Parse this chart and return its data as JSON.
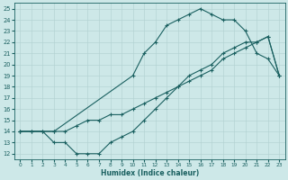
{
  "xlabel": "Humidex (Indice chaleur)",
  "bg_color": "#cde8e8",
  "line_color": "#1a6060",
  "grid_color": "#b0d0d0",
  "xlim": [
    -0.5,
    23.5
  ],
  "ylim": [
    11.5,
    25.5
  ],
  "xticks": [
    0,
    1,
    2,
    3,
    4,
    5,
    6,
    7,
    8,
    9,
    10,
    11,
    12,
    13,
    14,
    15,
    16,
    17,
    18,
    19,
    20,
    21,
    22,
    23
  ],
  "yticks": [
    12,
    13,
    14,
    15,
    16,
    17,
    18,
    19,
    20,
    21,
    22,
    23,
    24,
    25
  ],
  "line1_x": [
    0,
    1,
    2,
    3,
    4,
    5,
    6,
    7,
    8,
    9,
    10,
    11,
    12,
    13,
    14,
    15,
    16,
    17,
    18,
    19,
    20,
    21,
    22,
    23
  ],
  "line1_y": [
    14,
    14,
    14,
    13,
    13,
    12,
    12,
    12,
    13,
    13.5,
    14,
    15,
    16,
    17,
    18,
    19,
    19.5,
    20,
    21,
    21.5,
    22,
    22,
    22.5,
    19
  ],
  "line2_x": [
    0,
    1,
    2,
    3,
    4,
    5,
    6,
    7,
    8,
    9,
    10,
    11,
    12,
    13,
    14,
    15,
    16,
    17,
    18,
    19,
    20,
    21,
    22,
    23
  ],
  "line2_y": [
    14,
    14,
    14,
    14,
    14,
    14.5,
    15,
    15,
    15.5,
    15.5,
    16,
    16.5,
    17,
    17.5,
    18,
    18.5,
    19,
    19.5,
    20.5,
    21,
    21.5,
    22,
    22.5,
    19
  ],
  "line3_x": [
    0,
    3,
    10,
    11,
    12,
    13,
    14,
    15,
    16,
    17,
    18,
    19,
    20,
    21,
    22,
    23
  ],
  "line3_y": [
    14,
    14,
    19,
    21,
    22,
    23.5,
    24,
    24.5,
    25,
    24.5,
    24,
    24,
    23,
    21,
    20.5,
    19
  ]
}
